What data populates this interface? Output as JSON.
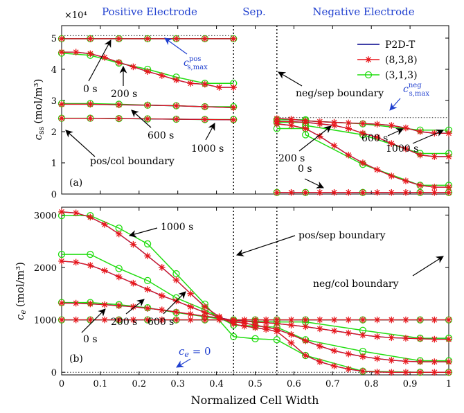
{
  "figure": {
    "top_labels": [
      "Positive Electrode",
      "Sep.",
      "Negative Electrode"
    ],
    "xlabel": "Normalized Cell Width",
    "colors": {
      "p2d": "#00008B",
      "r838": "#E8161B",
      "r313": "#22DD11",
      "blue_text": "#1F3FCF",
      "boundary": "#000000"
    }
  },
  "chart_data": [
    {
      "id": "a",
      "type": "line",
      "panel_label": "(a)",
      "ylabel_main": "c",
      "ylabel_sub": "ss",
      "ylabel_unit": "(mol/m³)",
      "y_exponent": "×10⁴",
      "xlim": [
        0,
        1
      ],
      "ylim": [
        0,
        5.4
      ],
      "xticks": [
        0,
        0.1,
        0.2,
        0.3,
        0.4,
        0.5,
        0.6,
        0.7,
        0.8,
        0.9,
        1
      ],
      "xtick_labels": [
        "0",
        "0.1",
        "0.2",
        "0.3",
        "0.4",
        "0.5",
        "0.6",
        "0.7",
        "0.8",
        "0.9",
        "1"
      ],
      "yticks": [
        0,
        1,
        2,
        3,
        4,
        5
      ],
      "ytick_labels": [
        "0",
        "1",
        "2",
        "3",
        "4",
        "5"
      ],
      "grid": false,
      "legend": {
        "placement": "top-right",
        "entries": [
          {
            "label": "P2D-T",
            "style": "line"
          },
          {
            "label": "(8,3,8)",
            "style": "star"
          },
          {
            "label": "(3,1,3)",
            "style": "circle"
          }
        ]
      },
      "boundaries": [
        0.444,
        0.556
      ],
      "max_lines": [
        {
          "x": [
            0,
            0.444
          ],
          "y": 5.08
        },
        {
          "x": [
            0.556,
            1
          ],
          "y": 2.45
        }
      ],
      "curves": [
        {
          "x": [
            0,
            0.074,
            0.148,
            0.222,
            0.296,
            0.37,
            0.444
          ],
          "y": [
            4.98,
            4.98,
            4.98,
            4.98,
            4.98,
            4.98,
            4.98
          ]
        },
        {
          "x": [
            0,
            0.037,
            0.074,
            0.111,
            0.148,
            0.185,
            0.222,
            0.259,
            0.296,
            0.333,
            0.37,
            0.407,
            0.444
          ],
          "y": [
            4.55,
            4.55,
            4.5,
            4.38,
            4.22,
            4.08,
            3.93,
            3.8,
            3.66,
            3.55,
            3.52,
            3.42,
            3.42
          ]
        },
        {
          "x": [
            0,
            0.074,
            0.148,
            0.222,
            0.296,
            0.37,
            0.444
          ],
          "y": [
            2.88,
            2.88,
            2.86,
            2.85,
            2.83,
            2.8,
            2.77
          ]
        },
        {
          "x": [
            0,
            0.074,
            0.148,
            0.222,
            0.296,
            0.37,
            0.444
          ],
          "y": [
            2.43,
            2.43,
            2.42,
            2.41,
            2.4,
            2.39,
            2.38
          ]
        },
        {
          "x": [
            0.556,
            0.593,
            0.63,
            0.667,
            0.704,
            0.741,
            0.778,
            0.815,
            0.852,
            0.889,
            0.926,
            0.963,
            1
          ],
          "y": [
            2.42,
            2.4,
            2.35,
            2.32,
            2.3,
            2.28,
            2.26,
            2.24,
            2.2,
            2.12,
            2.0,
            1.95,
            1.95
          ]
        },
        {
          "x": [
            0.556,
            0.593,
            0.63,
            0.667,
            0.704,
            0.741,
            0.778,
            0.815,
            0.852,
            0.889,
            0.926,
            0.963,
            1
          ],
          "y": [
            2.33,
            2.32,
            2.3,
            2.25,
            2.2,
            2.1,
            1.95,
            1.82,
            1.62,
            1.45,
            1.25,
            1.2,
            1.2
          ]
        },
        {
          "x": [
            0.556,
            0.593,
            0.63,
            0.667,
            0.704,
            0.741,
            0.778,
            0.815,
            0.852,
            0.889,
            0.926,
            0.963,
            1
          ],
          "y": [
            2.25,
            2.2,
            2.1,
            1.85,
            1.55,
            1.25,
            1.0,
            0.78,
            0.58,
            0.42,
            0.28,
            0.22,
            0.22
          ]
        },
        {
          "x": [
            0.556,
            0.593,
            0.63,
            0.667,
            0.704,
            0.741,
            0.778,
            0.815,
            0.852,
            0.889,
            0.926,
            0.963,
            1
          ],
          "y": [
            0.05,
            0.05,
            0.05,
            0.05,
            0.05,
            0.05,
            0.05,
            0.05,
            0.05,
            0.05,
            0.05,
            0.05,
            0.05
          ]
        }
      ],
      "curves_313": [
        {
          "x": [
            0,
            0.074,
            0.148,
            0.222,
            0.296,
            0.37,
            0.444
          ],
          "y": [
            4.98,
            4.98,
            4.98,
            4.98,
            4.98,
            4.98,
            4.98
          ]
        },
        {
          "x": [
            0,
            0.074,
            0.148,
            0.222,
            0.296,
            0.37,
            0.444
          ],
          "y": [
            4.52,
            4.45,
            4.2,
            4.0,
            3.75,
            3.55,
            3.55
          ]
        },
        {
          "x": [
            0,
            0.074,
            0.148,
            0.222,
            0.296,
            0.37,
            0.444
          ],
          "y": [
            2.9,
            2.9,
            2.88,
            2.85,
            2.83,
            2.8,
            2.8
          ]
        },
        {
          "x": [
            0,
            0.074,
            0.148,
            0.222,
            0.296,
            0.37,
            0.444
          ],
          "y": [
            2.43,
            2.43,
            2.42,
            2.41,
            2.4,
            2.39,
            2.39
          ]
        },
        {
          "x": [
            0.556,
            0.63,
            0.63,
            0.778,
            0.926,
            1
          ],
          "y": [
            2.38,
            2.38,
            2.35,
            2.25,
            2.05,
            2.05
          ]
        },
        {
          "x": [
            0.556,
            0.63,
            0.63,
            0.778,
            0.926,
            1
          ],
          "y": [
            2.1,
            2.1,
            2.2,
            1.9,
            1.3,
            1.3
          ]
        },
        {
          "x": [
            0.556,
            0.63,
            0.63,
            0.778,
            0.926,
            1
          ],
          "y": [
            2.3,
            2.3,
            1.9,
            0.95,
            0.28,
            0.28
          ]
        },
        {
          "x": [
            0.556,
            0.63,
            0.778,
            0.926,
            1
          ],
          "y": [
            0.05,
            0.05,
            0.05,
            0.05,
            0.05
          ]
        }
      ],
      "annotations": {
        "t0": "0 s",
        "t200": "200 s",
        "t600": "600 s",
        "t1000": "1000 s",
        "neg_t600": "600 s",
        "neg_t1000": "1000 s",
        "neg_t200": "200 s",
        "neg_t0": "0 s",
        "pos_col": "pos/col boundary",
        "neg_sep": "neg/sep boundary",
        "cmax_pos_main": "c",
        "cmax_pos_sup": "pos",
        "cmax_pos_sub": "s,max",
        "cmax_neg_main": "c",
        "cmax_neg_sup": "neg",
        "cmax_neg_sub": "s,max"
      }
    },
    {
      "id": "b",
      "type": "line",
      "panel_label": "(b)",
      "ylabel_main": "c",
      "ylabel_sub": "e",
      "ylabel_unit": "(mol/m³)",
      "xlim": [
        0,
        1
      ],
      "ylim": [
        -50,
        3150
      ],
      "xticks": [
        0,
        0.1,
        0.2,
        0.3,
        0.4,
        0.5,
        0.6,
        0.7,
        0.8,
        0.9,
        1
      ],
      "xtick_labels": [
        "0",
        "0.1",
        "0.2",
        "0.3",
        "0.4",
        "0.5",
        "0.6",
        "0.7",
        "0.8",
        "0.9",
        "1"
      ],
      "yticks": [
        0,
        1000,
        2000,
        3000
      ],
      "ytick_labels": [
        "0",
        "1000",
        "2000",
        "3000"
      ],
      "grid": false,
      "boundaries": [
        0.444,
        0.556
      ],
      "zero_line": 0,
      "curves": [
        {
          "x": [
            0,
            0.037,
            0.074,
            0.111,
            0.148,
            0.185,
            0.222,
            0.259,
            0.296,
            0.333,
            0.37,
            0.407,
            0.444,
            0.472,
            0.5,
            0.528,
            0.556,
            0.593,
            0.63,
            0.667,
            0.704,
            0.741,
            0.778,
            0.815,
            0.852,
            0.889,
            0.926,
            0.963,
            1
          ],
          "y": [
            1000,
            1000,
            1000,
            1000,
            1000,
            1000,
            1000,
            1000,
            1000,
            1000,
            1000,
            1000,
            1000,
            1000,
            1000,
            1000,
            1000,
            1000,
            1000,
            1000,
            1000,
            1000,
            1000,
            1000,
            1000,
            1000,
            1000,
            1000,
            1000
          ]
        },
        {
          "x": [
            0,
            0.037,
            0.074,
            0.111,
            0.148,
            0.185,
            0.222,
            0.259,
            0.296,
            0.333,
            0.37,
            0.407,
            0.444,
            0.472,
            0.5,
            0.528,
            0.556,
            0.593,
            0.63,
            0.667,
            0.704,
            0.741,
            0.778,
            0.815,
            0.852,
            0.889,
            0.926,
            0.963,
            1
          ],
          "y": [
            1320,
            1318,
            1305,
            1290,
            1270,
            1250,
            1220,
            1190,
            1150,
            1110,
            1070,
            1040,
            990,
            975,
            960,
            945,
            930,
            900,
            870,
            830,
            790,
            750,
            710,
            680,
            660,
            650,
            640,
            630,
            630
          ]
        },
        {
          "x": [
            0,
            0.037,
            0.074,
            0.111,
            0.148,
            0.185,
            0.222,
            0.259,
            0.296,
            0.333,
            0.37,
            0.407,
            0.444,
            0.472,
            0.5,
            0.528,
            0.556,
            0.593,
            0.63,
            0.667,
            0.704,
            0.741,
            0.778,
            0.815,
            0.852,
            0.889,
            0.926,
            0.963,
            1
          ],
          "y": [
            2120,
            2100,
            2040,
            1940,
            1820,
            1700,
            1580,
            1460,
            1360,
            1250,
            1140,
            1050,
            960,
            940,
            900,
            860,
            820,
            720,
            600,
            500,
            410,
            350,
            300,
            260,
            230,
            210,
            200,
            200,
            200
          ]
        },
        {
          "x": [
            0,
            0.037,
            0.074,
            0.111,
            0.148,
            0.185,
            0.222,
            0.259,
            0.296,
            0.333,
            0.37,
            0.407,
            0.444,
            0.472,
            0.5,
            0.528,
            0.556,
            0.593,
            0.63,
            0.667,
            0.704,
            0.741,
            0.778,
            0.815,
            0.852,
            0.889,
            0.926,
            0.963,
            1
          ],
          "y": [
            3060,
            3040,
            2960,
            2820,
            2640,
            2440,
            2220,
            2000,
            1760,
            1500,
            1250,
            1060,
            920,
            880,
            850,
            820,
            780,
            560,
            320,
            200,
            120,
            60,
            20,
            5,
            0,
            0,
            0,
            0,
            0
          ]
        }
      ],
      "curves_313": [
        {
          "x": [
            0,
            0.074,
            0.148,
            0.222,
            0.296,
            0.37,
            0.444,
            0.5,
            0.556,
            0.63,
            0.778,
            0.926,
            1
          ],
          "y": [
            1000,
            1000,
            1000,
            1000,
            1000,
            1000,
            1000,
            1000,
            1000,
            1000,
            1000,
            1000,
            1000
          ]
        },
        {
          "x": [
            0,
            0.074,
            0.148,
            0.222,
            0.296,
            0.37,
            0.444,
            0.5,
            0.556,
            0.63,
            0.778,
            0.926,
            1
          ],
          "y": [
            1330,
            1330,
            1290,
            1230,
            1140,
            1060,
            980,
            970,
            960,
            960,
            800,
            650,
            650
          ]
        },
        {
          "x": [
            0,
            0.074,
            0.148,
            0.222,
            0.296,
            0.37,
            0.444,
            0.5,
            0.556,
            0.63,
            0.778,
            0.926,
            1
          ],
          "y": [
            2250,
            2250,
            1980,
            1750,
            1420,
            1190,
            900,
            880,
            860,
            620,
            400,
            220,
            220
          ]
        },
        {
          "x": [
            0,
            0.074,
            0.148,
            0.222,
            0.296,
            0.37,
            0.444,
            0.5,
            0.556,
            0.63,
            0.778,
            0.926,
            1
          ],
          "y": [
            2990,
            2990,
            2750,
            2450,
            1880,
            1300,
            680,
            640,
            620,
            320,
            20,
            0,
            0
          ]
        }
      ],
      "annotations": {
        "t1000": "1000 s",
        "t0": "0 s",
        "t200": "200 s",
        "t600": "600 s",
        "pos_sep": "pos/sep boundary",
        "neg_col": "neg/col boundary",
        "ce_main": "c",
        "ce_sub": "e",
        "ce_eq": " = 0"
      }
    }
  ]
}
